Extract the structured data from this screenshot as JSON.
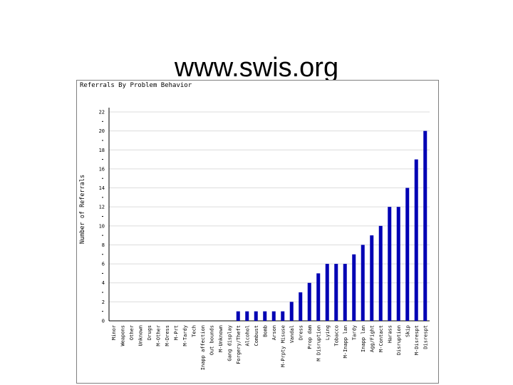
{
  "slide": {
    "title": "www.swis.org"
  },
  "chart_data": {
    "type": "bar",
    "title": "Referrals By Problem Behavior",
    "xlabel": "",
    "ylabel": "Number of Referrals",
    "ylim": [
      0,
      22
    ],
    "yticks": [
      0,
      2,
      4,
      6,
      8,
      10,
      12,
      14,
      16,
      18,
      20,
      22
    ],
    "grid": true,
    "bar_color": "#0000b4",
    "categories": [
      "Minor",
      "Weapons",
      "Other",
      "Unknown",
      "Drugs",
      "M-Other",
      "M-Dress",
      "M-Prt",
      "M-Tardy",
      "Tech",
      "Inapp affection",
      "Out bounds",
      "M-Unknown",
      "Gang display",
      "Forgery/Theft",
      "Alcohol",
      "Combust",
      "Bomb",
      "Arson",
      "M-Prpty Misuse",
      "Vandal",
      "Dress",
      "Prop dam",
      "M Disruption",
      "Lying",
      "Tobacco",
      "M-Inapp lan",
      "Tardy",
      "Inapp lan",
      "Agg/Fight",
      "M-Contact",
      "Harass",
      "Disruption",
      "Skip",
      "M-Disrespt",
      "Disrespt"
    ],
    "values": [
      0,
      0,
      0,
      0,
      0,
      0,
      0,
      0,
      0,
      0,
      0,
      0,
      0,
      0,
      1,
      1,
      1,
      1,
      1,
      1,
      2,
      3,
      4,
      5,
      6,
      6,
      6,
      7,
      8,
      9,
      10,
      12,
      12,
      14,
      17,
      20
    ]
  }
}
